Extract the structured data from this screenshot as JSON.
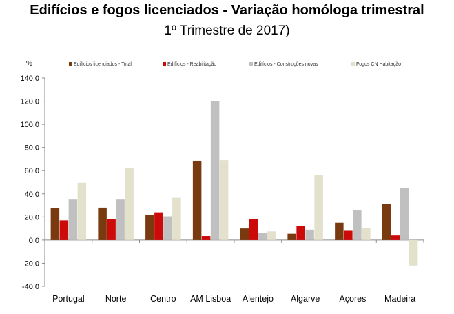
{
  "chart_data": {
    "type": "bar",
    "title": "Edifícios e fogos licenciados - Variação homóloga trimestral",
    "subtitle": "1º Trimestre de 2017)",
    "ylabel": "%",
    "xlabel": "",
    "ylim": [
      -40,
      140
    ],
    "yticks": [
      140,
      120,
      100,
      80,
      60,
      40,
      20,
      0,
      -20,
      -40
    ],
    "ytick_labels": [
      "140,0",
      "120,0",
      "100,0",
      "80,0",
      "60,0",
      "40,0",
      "20,0",
      "0,0",
      "-20,0",
      "-40,0"
    ],
    "grid": false,
    "legend_position": "top",
    "categories": [
      "Portugal",
      "Norte",
      "Centro",
      "AM Lisboa",
      "Alentejo",
      "Algarve",
      "Açores",
      "Madeira"
    ],
    "series": [
      {
        "name": "Edifícios licenciados - Total",
        "color": "#7a3a10",
        "values": [
          27.5,
          28.0,
          22.0,
          68.5,
          10.0,
          5.5,
          15.0,
          31.5
        ]
      },
      {
        "name": "Edifícios - Reabilitação",
        "color": "#cc0a0a",
        "values": [
          17.0,
          18.0,
          24.0,
          3.5,
          18.0,
          12.0,
          8.0,
          4.0
        ]
      },
      {
        "name": "Edifícios - Construções novas",
        "color": "#c0c0c0",
        "values": [
          35.0,
          35.0,
          20.5,
          120.0,
          6.5,
          9.0,
          26.0,
          45.0
        ]
      },
      {
        "name": "Fogos CN Habitação",
        "color": "#e3e0cc",
        "values": [
          49.5,
          62.0,
          36.5,
          69.0,
          7.5,
          56.0,
          10.5,
          -22.0
        ]
      }
    ]
  }
}
